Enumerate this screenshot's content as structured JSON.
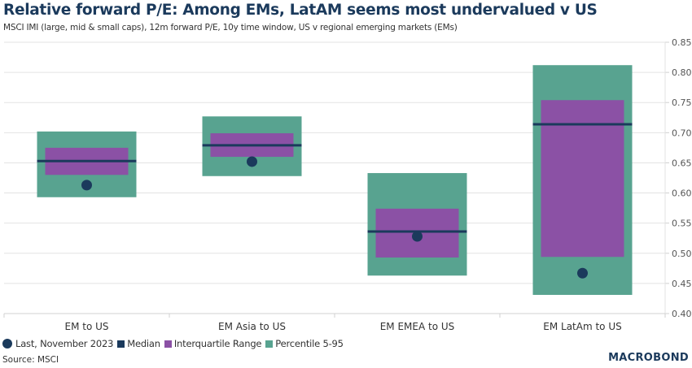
{
  "header": {
    "title": "Relative forward P/E: Among EMs, LatAM seems most undervalued v US",
    "subtitle": "MSCI IMI (large, mid & small caps), 12m forward P/E, 10y time window, US v regional emerging markets (EMs)"
  },
  "footer": {
    "source": "Source: MSCI",
    "logo": "MACROBOND"
  },
  "colors": {
    "percentile": "#58a390",
    "iqr": "#8b51a5",
    "median": "#1b3a5c",
    "last": "#1b3a5c",
    "grid": "#e3e3e3",
    "title": "#1b3a5c"
  },
  "chart_data": {
    "type": "box",
    "title": "Relative forward P/E: Among EMs, LatAM seems most undervalued v US",
    "subtitle": "MSCI IMI (large, mid & small caps), 12m forward P/E, 10y time window, US v regional emerging markets (EMs)",
    "xlabel": "",
    "ylabel": "",
    "y_axis_side": "right",
    "ylim": [
      0.4,
      0.85
    ],
    "yticks": [
      "0.85",
      "0.80",
      "0.75",
      "0.70",
      "0.65",
      "0.60",
      "0.55",
      "0.50",
      "0.45",
      "0.40"
    ],
    "ytick_values": [
      0.85,
      0.8,
      0.75,
      0.7,
      0.65,
      0.6,
      0.55,
      0.5,
      0.45,
      0.4
    ],
    "grid": true,
    "legend_position": "bottom-left",
    "categories": [
      "EM to US",
      "EM Asia to US",
      "EM EMEA to US",
      "EM LatAm to US"
    ],
    "series": [
      {
        "name": "Percentile 5-95",
        "low": [
          0.593,
          0.628,
          0.463,
          0.431
        ],
        "high": [
          0.702,
          0.727,
          0.633,
          0.812
        ]
      },
      {
        "name": "Interquartile Range",
        "low": [
          0.63,
          0.66,
          0.493,
          0.494
        ],
        "high": [
          0.675,
          0.699,
          0.574,
          0.754
        ]
      },
      {
        "name": "Median",
        "values": [
          0.653,
          0.679,
          0.536,
          0.714
        ]
      },
      {
        "name": "Last, November 2023",
        "values": [
          0.613,
          0.652,
          0.528,
          0.467
        ]
      }
    ],
    "legend": [
      {
        "label": "Last, November 2023",
        "shape": "circle",
        "color": "#1b3a5c"
      },
      {
        "label": "Median",
        "shape": "square",
        "color": "#1b3a5c"
      },
      {
        "label": "Interquartile Range",
        "shape": "square",
        "color": "#8b51a5"
      },
      {
        "label": "Percentile 5-95",
        "shape": "square",
        "color": "#58a390"
      }
    ]
  }
}
